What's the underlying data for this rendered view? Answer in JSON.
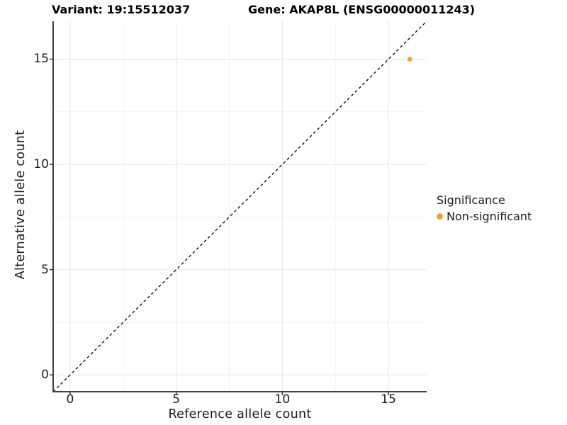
{
  "header": {
    "variant_title": "Variant: 19:15512037",
    "gene_title": "Gene: AKAP8L (ENSG00000011243)"
  },
  "chart_data": {
    "type": "scatter",
    "title": "Variant: 19:15512037   Gene: AKAP8L (ENSG00000011243)",
    "xlabel": "Reference allele count",
    "ylabel": "Alternative allele count",
    "xlim": [
      -0.8,
      16.8
    ],
    "ylim": [
      -0.8,
      16.8
    ],
    "xticks": [
      0,
      5,
      10,
      15
    ],
    "yticks": [
      0,
      5,
      10,
      15
    ],
    "x_minor_ticks": [
      2.5,
      7.5,
      12.5
    ],
    "y_minor_ticks": [
      2.5,
      7.5,
      12.5
    ],
    "grid": true,
    "points": [
      {
        "x": 16,
        "y": 15,
        "series": "Non-significant"
      }
    ],
    "identity_line": {
      "style": "dashed",
      "slope": 1,
      "intercept": 0,
      "color": "#000000"
    },
    "legend": {
      "position": "right",
      "title": "Significance",
      "entries": [
        {
          "label": "Non-significant",
          "color": "#F9A133"
        }
      ]
    },
    "colors": {
      "point": "#F9A133",
      "grid_major": "#e6e6e6",
      "grid_minor": "#f2f2f2",
      "axis_line": "#404040",
      "tick_mark": "#333333",
      "axis_text": "#1a1a1a",
      "title_text": "#000000",
      "background": "#ffffff"
    }
  }
}
